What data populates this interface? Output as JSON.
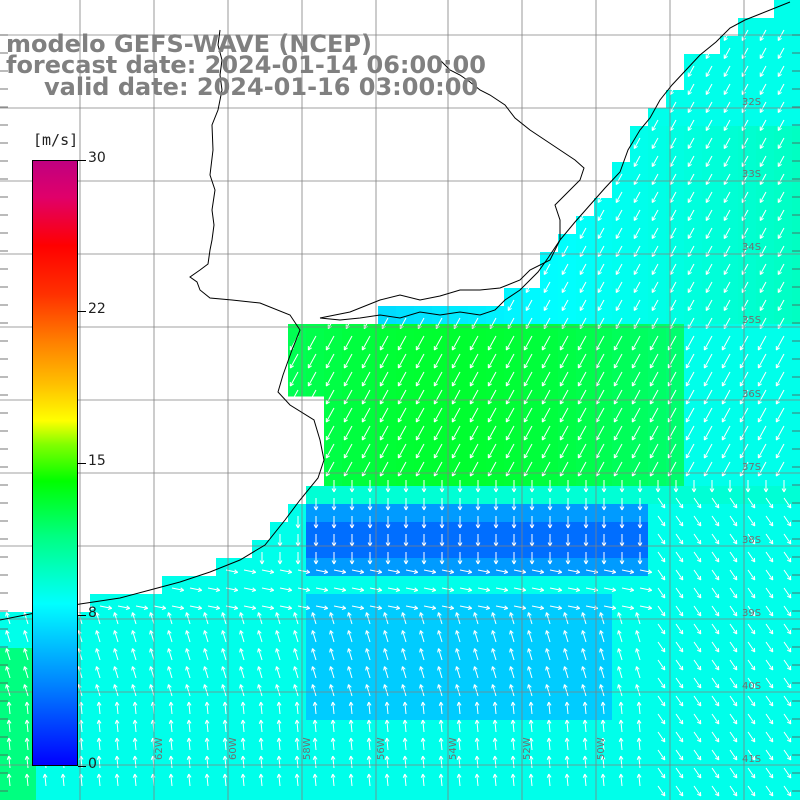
{
  "title": {
    "line1": "modelo GEFS-WAVE (NCEP)",
    "line2": "forecast date: 2024-01-14 06:00:00",
    "line3": "valid date: 2024-01-16 03:00:00"
  },
  "colorbar": {
    "unit": "[m/s]",
    "ticks": [
      "30",
      "22",
      "15",
      "8",
      "0"
    ],
    "colors": [
      "#0000ff",
      "#00ffff",
      "#00ff00",
      "#ffff00",
      "#ff0000",
      "#c00080"
    ]
  },
  "map_axes": {
    "latitude_labels": [
      "32S",
      "33S",
      "34S",
      "35S",
      "36S",
      "37S",
      "38S",
      "39S",
      "40S",
      "41S"
    ],
    "longitude_labels": [
      "62W",
      "60W",
      "58W",
      "56W",
      "54W",
      "52W",
      "50W"
    ],
    "grid": true
  },
  "map_features": {
    "coastline_color": "#000000",
    "land_color": "#ffffff",
    "grid_color": "#808080",
    "arrow_color": "#ffffff"
  }
}
